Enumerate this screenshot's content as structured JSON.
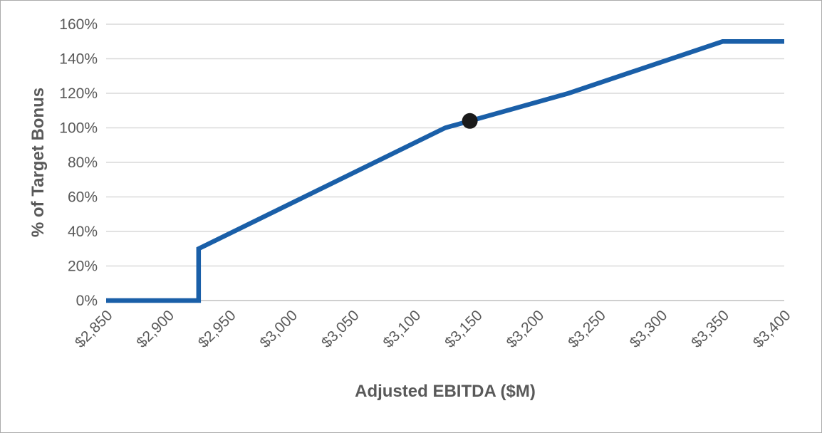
{
  "page": {
    "background": "#FFFFFF",
    "border_color": "#ABABAB"
  },
  "chart_data": {
    "type": "line",
    "title": "",
    "xlabel": "Adjusted EBITDA ($M)",
    "ylabel": "% of Target Bonus",
    "xlim": [
      2850,
      3400
    ],
    "ylim": [
      0,
      160
    ],
    "grid": "horizontal",
    "legend": "none",
    "x_tick_values": [
      2850,
      2900,
      2950,
      3000,
      3050,
      3100,
      3150,
      3200,
      3250,
      3300,
      3350,
      3400
    ],
    "x_tick_labels": [
      "$2,850",
      "$2,900",
      "$2,950",
      "$3,000",
      "$3,050",
      "$3,100",
      "$3,150",
      "$3,200",
      "$3,250",
      "$3,300",
      "$3,350",
      "$3,400"
    ],
    "y_tick_values": [
      0,
      20,
      40,
      60,
      80,
      100,
      120,
      140,
      160
    ],
    "y_tick_labels": [
      "0%",
      "20%",
      "40%",
      "60%",
      "80%",
      "100%",
      "120%",
      "140%",
      "160%"
    ],
    "series": [
      {
        "name": "bonus-payout-curve",
        "color": "#1A5FA8",
        "stroke_width": 6.5,
        "points": [
          {
            "x": 2850,
            "y": 0
          },
          {
            "x": 2925,
            "y": 0
          },
          {
            "x": 2925,
            "y": 30
          },
          {
            "x": 3125,
            "y": 100
          },
          {
            "x": 3225,
            "y": 120
          },
          {
            "x": 3350,
            "y": 150
          },
          {
            "x": 3400,
            "y": 150
          }
        ]
      }
    ],
    "markers": [
      {
        "name": "current-position-marker",
        "x": 3145,
        "y": 104,
        "radius": 11,
        "color": "#1A1A1A"
      }
    ],
    "styles": {
      "grid_color": "#D9D9D9",
      "axis_line_color": "#BFBFBF",
      "tick_label_color": "#595959",
      "axis_title_color": "#595959"
    }
  }
}
